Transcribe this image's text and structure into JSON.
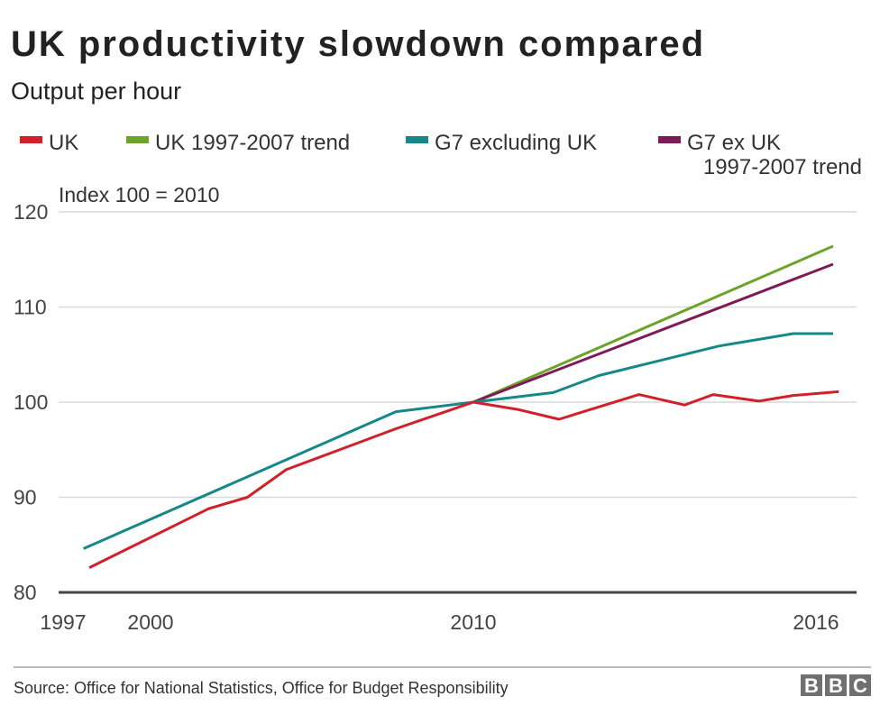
{
  "chart_data": {
    "type": "line",
    "title": "UK productivity slowdown compared",
    "subtitle": "Output per hour",
    "ylabel": "Index 100 = 2010",
    "xlabel": "",
    "ylim": [
      80,
      120
    ],
    "yticks": [
      80,
      90,
      100,
      110,
      120
    ],
    "xticks": [
      1997,
      2000,
      2010,
      2016
    ],
    "grid": true,
    "legend_position": "top",
    "series": [
      {
        "name": "UK",
        "color": "#d1202a",
        "points": [
          [
            1997.9,
            82.6
          ],
          [
            2001.8,
            88.8
          ],
          [
            2003.0,
            90.0
          ],
          [
            2004.2,
            92.9
          ],
          [
            2007.6,
            97.2
          ],
          [
            2010,
            100
          ],
          [
            2010.8,
            99.2
          ],
          [
            2011.5,
            98.2
          ],
          [
            2012.9,
            100.8
          ],
          [
            2013.7,
            99.7
          ],
          [
            2014.2,
            100.8
          ],
          [
            2015.0,
            100.1
          ],
          [
            2015.6,
            100.7
          ],
          [
            2016.4,
            101.1
          ]
        ]
      },
      {
        "name": "UK 1997-2007 trend",
        "color": "#6ea32b",
        "points": [
          [
            2010,
            100
          ],
          [
            2016.3,
            116.4
          ]
        ]
      },
      {
        "name": "G7 excluding UK",
        "color": "#16888a",
        "points": [
          [
            1997.7,
            84.6
          ],
          [
            2007.6,
            99.0
          ],
          [
            2010,
            100
          ],
          [
            2011.4,
            101.0
          ],
          [
            2012.2,
            102.8
          ],
          [
            2014.3,
            105.9
          ],
          [
            2015.6,
            107.2
          ],
          [
            2016.3,
            107.2
          ]
        ]
      },
      {
        "name": "G7 ex UK 1997-2007 trend",
        "name_lines": [
          "G7 ex UK",
          "1997-2007 trend"
        ],
        "color": "#7e1a55",
        "points": [
          [
            2010,
            100
          ],
          [
            2016.3,
            114.5
          ]
        ]
      }
    ]
  },
  "footer": {
    "source": "Source: Office for National Statistics, Office for Budget Responsibility",
    "logo": "BBC"
  }
}
